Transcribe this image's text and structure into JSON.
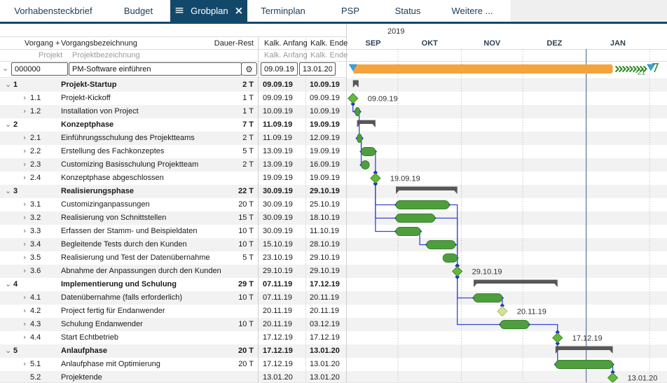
{
  "nav": {
    "tabs": [
      {
        "label": "Vorhabensteckbrief",
        "active": false
      },
      {
        "label": "Budget",
        "active": false
      },
      {
        "label": "Grobplan",
        "active": true
      },
      {
        "label": "Terminplan",
        "active": false
      },
      {
        "label": "PSP",
        "active": false
      },
      {
        "label": "Status",
        "active": false
      },
      {
        "label": "Weitere ...",
        "active": false
      }
    ]
  },
  "icons": {
    "menu": "≡",
    "close": "×",
    "gear": "⚙",
    "expanded": "⌄",
    "collapsed": "›",
    "start_marker": "triangle-down-blue",
    "end_marker": "triangle-down-blue"
  },
  "table_header": {
    "col_task": "Vorgang +",
    "col_name": "Vorgangsbezeichnung",
    "col_duration": "Dauer-Rest",
    "col_start": "Kalk. Anfang",
    "col_end": "Kalk. Ende",
    "sub_task": "Projekt",
    "sub_name": "Projektbezeichnung",
    "sub_start": "Kalk. Anfang",
    "sub_end": "Kalk. Ende"
  },
  "project_row": {
    "id": "000000",
    "name": "PM-Software einführen",
    "start": "09.09.19",
    "end": "13.01.20"
  },
  "timeline": {
    "year": "2019",
    "months": [
      "SEP",
      "OKT",
      "NOV",
      "DEZ",
      "JAN"
    ]
  },
  "rows": [
    {
      "num": "1",
      "name": "Projekt-Startup",
      "level": 1,
      "dur": "2 T",
      "start": "09.09.19",
      "end": "10.09.19",
      "summary": true,
      "bar": "summary"
    },
    {
      "num": "1.1",
      "name": "Projekt-Kickoff",
      "level": 2,
      "dur": "1 T",
      "start": "09.09.19",
      "end": "09.09.19",
      "summary": false,
      "bar": "milestone",
      "ms_at": "start",
      "label": "09.09.19"
    },
    {
      "num": "1.2",
      "name": "Installation von Project",
      "level": 2,
      "dur": "1 T",
      "start": "10.09.19",
      "end": "10.09.19",
      "summary": false,
      "bar": "task"
    },
    {
      "num": "2",
      "name": "Konzeptphase",
      "level": 1,
      "dur": "7 T",
      "start": "11.09.19",
      "end": "19.09.19",
      "summary": true,
      "bar": "summary"
    },
    {
      "num": "2.1",
      "name": "Einführungsschulung des Projektteams",
      "level": 2,
      "dur": "2 T",
      "start": "11.09.19",
      "end": "12.09.19",
      "summary": false,
      "bar": "task"
    },
    {
      "num": "2.2",
      "name": "Erstellung des Fachkonzeptes",
      "level": 2,
      "dur": "5 T",
      "start": "13.09.19",
      "end": "19.09.19",
      "summary": false,
      "bar": "task"
    },
    {
      "num": "2.3",
      "name": "Customizing Basisschulung Projektteam",
      "level": 2,
      "dur": "2 T",
      "start": "13.09.19",
      "end": "16.09.19",
      "summary": false,
      "bar": "task"
    },
    {
      "num": "2.4",
      "name": "Konzeptphase abgeschlossen",
      "level": 2,
      "dur": "",
      "start": "19.09.19",
      "end": "19.09.19",
      "summary": false,
      "bar": "milestone",
      "label": "19.09.19"
    },
    {
      "num": "3",
      "name": "Realisierungsphase",
      "level": 1,
      "dur": "22 T",
      "start": "30.09.19",
      "end": "29.10.19",
      "summary": true,
      "bar": "summary"
    },
    {
      "num": "3.1",
      "name": "Customizinganpassungen",
      "level": 2,
      "dur": "20 T",
      "start": "30.09.19",
      "end": "25.10.19",
      "summary": false,
      "bar": "task"
    },
    {
      "num": "3.2",
      "name": "Realisierung von Schnittstellen",
      "level": 2,
      "dur": "15 T",
      "start": "30.09.19",
      "end": "18.10.19",
      "summary": false,
      "bar": "task"
    },
    {
      "num": "3.3",
      "name": "Erfassen der Stamm- und Beispieldaten",
      "level": 2,
      "dur": "10 T",
      "start": "30.09.19",
      "end": "11.10.19",
      "summary": false,
      "bar": "task"
    },
    {
      "num": "3.4",
      "name": "Begleitende Tests durch den Kunden",
      "level": 2,
      "dur": "10 T",
      "start": "15.10.19",
      "end": "28.10.19",
      "summary": false,
      "bar": "task"
    },
    {
      "num": "3.5",
      "name": "Realisierung und Test der Datenübernahme",
      "level": 2,
      "dur": "5 T",
      "start": "23.10.19",
      "end": "29.10.19",
      "summary": false,
      "bar": "task"
    },
    {
      "num": "3.6",
      "name": "Abnahme der Anpassungen durch den Kunden",
      "level": 2,
      "dur": "",
      "start": "29.10.19",
      "end": "29.10.19",
      "summary": false,
      "bar": "milestone",
      "label": "29.10.19"
    },
    {
      "num": "4",
      "name": "Implementierung und Schulung",
      "level": 1,
      "dur": "29 T",
      "start": "07.11.19",
      "end": "17.12.19",
      "summary": true,
      "bar": "summary"
    },
    {
      "num": "4.1",
      "name": "Datenübernahme (falls erforderlich)",
      "level": 2,
      "dur": "10 T",
      "start": "07.11.19",
      "end": "20.11.19",
      "summary": false,
      "bar": "task"
    },
    {
      "num": "4.2",
      "name": "Project fertig für Endanwender",
      "level": 2,
      "dur": "",
      "start": "20.11.19",
      "end": "20.11.19",
      "summary": false,
      "bar": "milestone",
      "pale": true,
      "label": "20.11.19"
    },
    {
      "num": "4.3",
      "name": "Schulung Endanwender",
      "level": 2,
      "dur": "10 T",
      "start": "20.11.19",
      "end": "03.12.19",
      "summary": false,
      "bar": "task"
    },
    {
      "num": "4.4",
      "name": "Start Echtbetrieb",
      "level": 2,
      "dur": "",
      "start": "17.12.19",
      "end": "17.12.19",
      "summary": false,
      "bar": "milestone",
      "label": "17.12.19"
    },
    {
      "num": "5",
      "name": "Anlaufphase",
      "level": 1,
      "dur": "20 T",
      "start": "17.12.19",
      "end": "13.01.20",
      "summary": true,
      "bar": "summary"
    },
    {
      "num": "5.1",
      "name": "Anlaufphase mit Optimierung",
      "level": 2,
      "dur": "20 T",
      "start": "17.12.19",
      "end": "13.01.20",
      "summary": false,
      "bar": "task"
    },
    {
      "num": "5.2",
      "name": "Projektende",
      "level": 2,
      "dur": "",
      "start": "13.01.20",
      "end": "13.01.20",
      "summary": false,
      "bar": "milestone",
      "label": "13.01.20",
      "no_chevron": true
    }
  ],
  "dependencies": [
    [
      "1.1",
      "1.2"
    ],
    [
      "1.2",
      "2.1"
    ],
    [
      "2.1",
      "2.2"
    ],
    [
      "2.1",
      "2.3"
    ],
    [
      "2.2",
      "2.4"
    ],
    [
      "2.4",
      "3.1"
    ],
    [
      "2.4",
      "3.2"
    ],
    [
      "2.4",
      "3.3"
    ],
    [
      "3.3",
      "3.4"
    ],
    [
      "3.1",
      "3.6"
    ],
    [
      "3.2",
      "3.6"
    ],
    [
      "3.4",
      "3.6"
    ],
    [
      "3.5",
      "3.6"
    ],
    [
      "3.6",
      "4.1"
    ],
    [
      "3.6",
      "4.3"
    ],
    [
      "4.1",
      "4.2"
    ],
    [
      "4.3",
      "4.4"
    ],
    [
      "4.4",
      "5.1"
    ],
    [
      "5.1",
      "5.2"
    ]
  ],
  "project_bar": {
    "buffer_label": "-21"
  },
  "grid_dates": {
    "dotted": [
      "01.10.19",
      "01.11.19",
      "01.12.19",
      "01.02.20"
    ],
    "solid": [
      "01.01.20"
    ]
  },
  "colors": {
    "navy": "#12496b",
    "orange": "#f3a43d",
    "task_fill": "#4e9e3e",
    "task_stroke": "#3a7f2e",
    "milestone_fill": "#65b83d",
    "milestone_stroke": "#3f8f26",
    "milestone_pale_fill": "#cfe0a0",
    "milestone_pale_stroke": "#adc470",
    "summary": "#575757",
    "connector": "#3546d2",
    "node": "#2030c0",
    "grid_dotted": "#a2b0c8",
    "grid_solid": "#7088a3",
    "stripe": "#f2f2f2",
    "buffer_green": "#2f8b26",
    "marker_blue": "#35a3dc",
    "label_text": "#333333"
  }
}
